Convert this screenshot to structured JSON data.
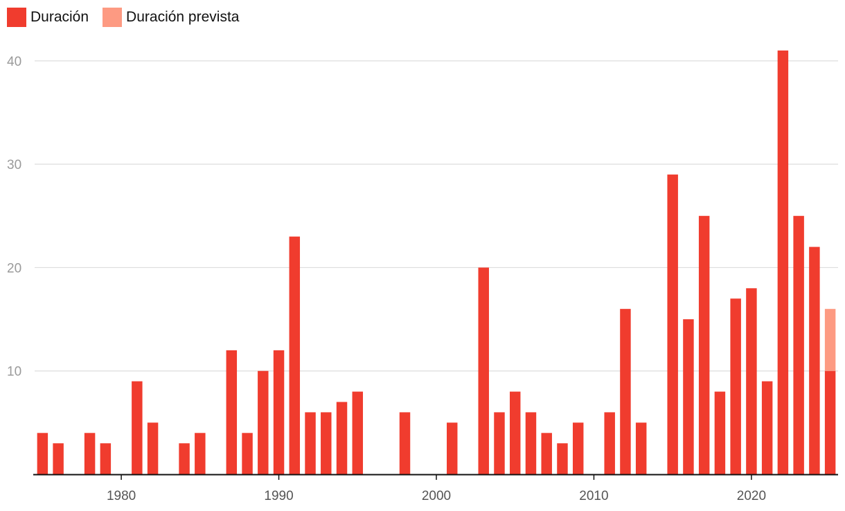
{
  "legend": [
    {
      "label": "Duración",
      "color": "#f03c2e"
    },
    {
      "label": "Duración prevista",
      "color": "#fd9a82"
    }
  ],
  "chart_data": {
    "type": "bar",
    "title": "",
    "xlabel": "",
    "ylabel": "",
    "xlim": [
      1974.5,
      2025.5
    ],
    "ylim": [
      0,
      42
    ],
    "yticks": [
      10,
      20,
      30,
      40
    ],
    "xticks": [
      1980,
      1990,
      2000,
      2010,
      2020
    ],
    "grid": true,
    "legend_position": "top-left",
    "series": [
      {
        "name": "Duración",
        "color": "#f03c2e",
        "points": [
          {
            "x": 1975,
            "y": 4
          },
          {
            "x": 1976,
            "y": 3
          },
          {
            "x": 1978,
            "y": 4
          },
          {
            "x": 1979,
            "y": 3
          },
          {
            "x": 1981,
            "y": 9
          },
          {
            "x": 1982,
            "y": 5
          },
          {
            "x": 1984,
            "y": 3
          },
          {
            "x": 1985,
            "y": 4
          },
          {
            "x": 1987,
            "y": 12
          },
          {
            "x": 1988,
            "y": 4
          },
          {
            "x": 1989,
            "y": 10
          },
          {
            "x": 1990,
            "y": 12
          },
          {
            "x": 1991,
            "y": 23
          },
          {
            "x": 1992,
            "y": 6
          },
          {
            "x": 1993,
            "y": 6
          },
          {
            "x": 1994,
            "y": 7
          },
          {
            "x": 1995,
            "y": 8
          },
          {
            "x": 1998,
            "y": 6
          },
          {
            "x": 2001,
            "y": 5
          },
          {
            "x": 2003,
            "y": 20
          },
          {
            "x": 2004,
            "y": 6
          },
          {
            "x": 2005,
            "y": 8
          },
          {
            "x": 2006,
            "y": 6
          },
          {
            "x": 2007,
            "y": 4
          },
          {
            "x": 2008,
            "y": 3
          },
          {
            "x": 2009,
            "y": 5
          },
          {
            "x": 2011,
            "y": 6
          },
          {
            "x": 2012,
            "y": 16
          },
          {
            "x": 2013,
            "y": 5
          },
          {
            "x": 2015,
            "y": 29
          },
          {
            "x": 2016,
            "y": 15
          },
          {
            "x": 2017,
            "y": 25
          },
          {
            "x": 2018,
            "y": 8
          },
          {
            "x": 2019,
            "y": 17
          },
          {
            "x": 2020,
            "y": 18
          },
          {
            "x": 2021,
            "y": 9
          },
          {
            "x": 2022,
            "y": 41
          },
          {
            "x": 2023,
            "y": 25
          },
          {
            "x": 2024,
            "y": 22
          },
          {
            "x": 2025,
            "y": 10
          }
        ]
      },
      {
        "name": "Duración prevista",
        "color": "#fd9a82",
        "stacked_on": "Duración",
        "points": [
          {
            "x": 2025,
            "y": 6
          }
        ]
      }
    ]
  }
}
